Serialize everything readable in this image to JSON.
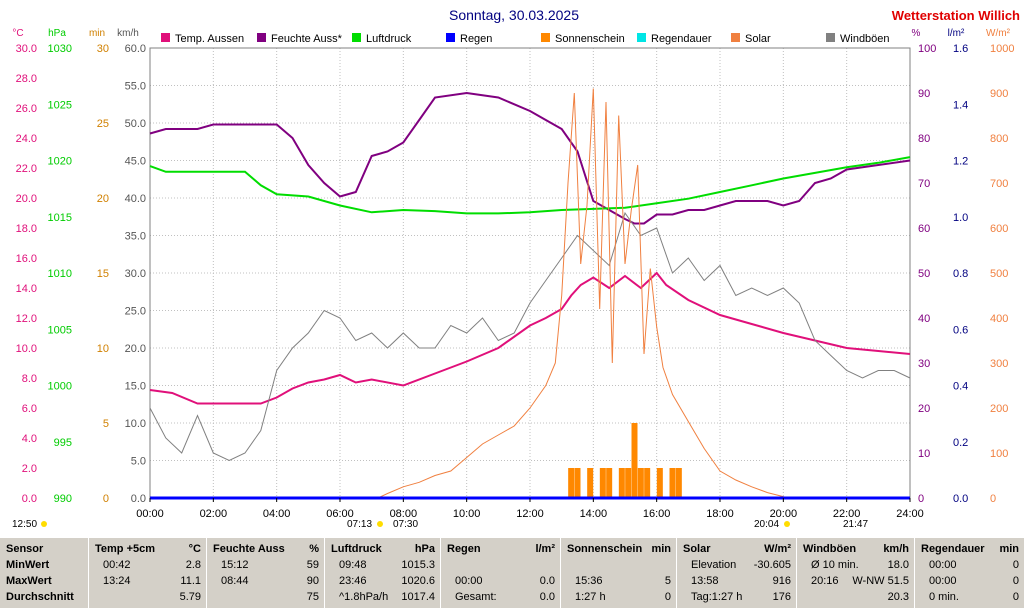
{
  "header": {
    "title": "Sonntag, 30.03.2025",
    "station": "Wetterstation Willich",
    "unit_left": [
      "°C",
      "hPa",
      "min",
      "km/h"
    ],
    "unit_right": [
      "%",
      "l/m²",
      "W/m²"
    ]
  },
  "legend": [
    {
      "label": "Temp. Aussen",
      "color": "#e0107a"
    },
    {
      "label": "Feuchte Auss*",
      "color": "#800080"
    },
    {
      "label": "Luftdruck",
      "color": "#00dd00"
    },
    {
      "label": "Regen",
      "color": "#0000ff"
    },
    {
      "label": "Sonnenschein",
      "color": "#ff8800"
    },
    {
      "label": "Regendauer",
      "color": "#00e5e5"
    },
    {
      "label": "Solar",
      "color": "#f08040"
    },
    {
      "label": "Windböen",
      "color": "#808080"
    }
  ],
  "axes": {
    "temp": {
      "ticks": [
        "30.0",
        "28.0",
        "26.0",
        "24.0",
        "22.0",
        "20.0",
        "18.0",
        "16.0",
        "14.0",
        "12.0",
        "10.0",
        "8.0",
        "6.0",
        "4.0",
        "2.0",
        "0.0"
      ],
      "color": "#e0107a"
    },
    "pressure": {
      "ticks": [
        "1030",
        "1025",
        "1020",
        "1015",
        "1010",
        "1005",
        "1000",
        "995",
        "990"
      ],
      "color": "#00cc00"
    },
    "minutes": {
      "ticks": [
        "30",
        "25",
        "20",
        "15",
        "10",
        "5",
        "0"
      ],
      "color": "#d08000"
    },
    "wind": {
      "ticks": [
        "60.0",
        "55.0",
        "50.0",
        "45.0",
        "40.0",
        "35.0",
        "30.0",
        "25.0",
        "20.0",
        "15.0",
        "10.0",
        "5.0",
        "0.0"
      ],
      "color": "#555555"
    },
    "humidity": {
      "ticks": [
        "100",
        "90",
        "80",
        "70",
        "60",
        "50",
        "40",
        "30",
        "20",
        "10",
        "0"
      ],
      "color": "#800080"
    },
    "rain": {
      "ticks": [
        "1.6",
        "1.4",
        "1.2",
        "1.0",
        "0.8",
        "0.6",
        "0.4",
        "0.2",
        "0.0"
      ],
      "color": "#000080"
    },
    "solar": {
      "ticks": [
        "1000",
        "900",
        "800",
        "700",
        "600",
        "500",
        "400",
        "300",
        "200",
        "100",
        "0"
      ],
      "color": "#f08040"
    },
    "x_ticks": [
      "00:00",
      "02:00",
      "04:00",
      "06:00",
      "08:00",
      "10:00",
      "12:00",
      "14:00",
      "16:00",
      "18:00",
      "20:00",
      "22:00",
      "24:00"
    ]
  },
  "markers": {
    "time_left": "12:50",
    "sunrise": "07:13",
    "sunrise2": "07:30",
    "sunset": "20:04",
    "sunset2": "21:47"
  },
  "chart_data": {
    "type": "line",
    "x_unit": "hour of day",
    "xlim": [
      0,
      24
    ],
    "series": [
      {
        "name": "Temp. Aussen",
        "axis": "temp",
        "ylim": [
          0,
          30
        ],
        "x": [
          0,
          0.7,
          1.5,
          2,
          3,
          3.5,
          4,
          4.5,
          5,
          5.5,
          6,
          6.5,
          7,
          8,
          9,
          10,
          11,
          12,
          12.5,
          13,
          13.3,
          13.6,
          14,
          14.5,
          15,
          15.5,
          16,
          16.3,
          17,
          18,
          19,
          20,
          21,
          22,
          23,
          24
        ],
        "y": [
          7.2,
          7.0,
          6.3,
          6.3,
          6.3,
          6.3,
          6.7,
          7.3,
          7.7,
          7.9,
          8.2,
          7.7,
          7.9,
          7.5,
          8.3,
          9.1,
          10.0,
          11.5,
          12.0,
          12.6,
          13.5,
          14.2,
          14.7,
          14.0,
          14.8,
          14.0,
          15.0,
          14.2,
          13.2,
          12.2,
          11.6,
          11.0,
          10.5,
          10.0,
          9.8,
          9.6
        ]
      },
      {
        "name": "Feuchte Auss*",
        "axis": "humidity",
        "ylim": [
          0,
          100
        ],
        "x": [
          0,
          0.5,
          1,
          1.5,
          2,
          2.5,
          3,
          3.5,
          4,
          4.5,
          5,
          5.5,
          6,
          6.5,
          7,
          7.5,
          8,
          8.5,
          9,
          10,
          11,
          12,
          12.5,
          13,
          13.5,
          14,
          14.5,
          15,
          15.3,
          15.6,
          16,
          16.5,
          17,
          17.5,
          18,
          18.5,
          19,
          19.5,
          20,
          20.5,
          21,
          21.5,
          22,
          23,
          24
        ],
        "y": [
          81,
          82,
          82,
          82,
          83,
          83,
          83,
          83,
          83,
          80,
          74,
          70,
          67,
          68,
          76,
          77,
          79,
          84,
          89,
          90,
          89,
          86,
          84,
          82,
          77,
          66,
          64,
          62,
          61,
          61,
          63,
          63,
          64,
          64,
          65,
          66,
          66,
          66,
          65,
          66,
          70,
          71,
          73,
          74,
          75
        ]
      },
      {
        "name": "Luftdruck",
        "axis": "pressure",
        "ylim": [
          990,
          1030
        ],
        "x": [
          0,
          0.5,
          1,
          2,
          3,
          3.5,
          4,
          5,
          6,
          7,
          8,
          9,
          10,
          11,
          12,
          13,
          14,
          15,
          16,
          17,
          18,
          19,
          20,
          21,
          22,
          23,
          24
        ],
        "y": [
          1019.5,
          1019,
          1019,
          1019,
          1019,
          1017.8,
          1017,
          1016.8,
          1016,
          1015.4,
          1015.6,
          1015.5,
          1015.3,
          1015.3,
          1015.4,
          1015.6,
          1015.7,
          1015.8,
          1016.2,
          1016.6,
          1017.2,
          1017.8,
          1018.4,
          1018.9,
          1019.4,
          1019.8,
          1020.3
        ]
      },
      {
        "name": "Windböen",
        "axis": "wind",
        "ylim": [
          0,
          60
        ],
        "x": [
          0,
          0.5,
          1,
          1.5,
          2,
          2.5,
          3,
          3.5,
          4,
          4.5,
          5,
          5.5,
          6,
          6.5,
          7,
          7.5,
          8,
          8.5,
          9,
          9.5,
          10,
          10.5,
          11,
          11.5,
          12,
          12.5,
          13,
          13.5,
          14,
          14.5,
          15,
          15.5,
          16,
          16.5,
          17,
          17.5,
          18,
          18.5,
          19,
          19.5,
          20,
          20.5,
          21,
          21.5,
          22,
          22.5,
          23,
          23.5,
          24
        ],
        "y": [
          12,
          8,
          6,
          11,
          6,
          5,
          6,
          9,
          17,
          20,
          22,
          25,
          24,
          21,
          22,
          20,
          22,
          20,
          20,
          23,
          22,
          24,
          21,
          22,
          26,
          29,
          32,
          35,
          33,
          31,
          38,
          35,
          36,
          30,
          32,
          29,
          31,
          27,
          28,
          27,
          28,
          26,
          21,
          19,
          17,
          16,
          17,
          17,
          16
        ]
      },
      {
        "name": "Solar",
        "axis": "solar",
        "ylim": [
          0,
          1000
        ],
        "x": [
          0,
          7.2,
          7.5,
          8,
          8.5,
          9,
          9.5,
          10,
          10.5,
          11,
          11.5,
          12,
          12.5,
          12.8,
          13,
          13.2,
          13.4,
          13.6,
          13.8,
          14,
          14.2,
          14.4,
          14.6,
          14.8,
          15,
          15.2,
          15.4,
          15.6,
          15.8,
          16,
          16.2,
          16.5,
          17,
          17.5,
          18,
          18.5,
          19,
          19.5,
          20,
          20.1,
          24
        ],
        "y": [
          0,
          0,
          10,
          25,
          35,
          50,
          60,
          90,
          120,
          140,
          160,
          200,
          250,
          300,
          450,
          700,
          900,
          520,
          650,
          910,
          420,
          880,
          300,
          850,
          520,
          640,
          740,
          320,
          510,
          380,
          290,
          230,
          170,
          110,
          60,
          40,
          25,
          12,
          3,
          0,
          0
        ]
      },
      {
        "name": "Sonnenschein",
        "axis": "minutes",
        "ylim": [
          0,
          30
        ],
        "x": [
          13.3,
          13.5,
          13.7,
          13.9,
          14.1,
          14.3,
          14.5,
          14.7,
          14.9,
          15.1,
          15.3,
          15.5,
          15.7,
          16.1,
          16.3,
          16.5,
          16.7
        ],
        "y": [
          2,
          2,
          0,
          2,
          0,
          2,
          2,
          0,
          2,
          2,
          5,
          2,
          2,
          2,
          0,
          2,
          2
        ]
      },
      {
        "name": "Regen",
        "axis": "rain",
        "ylim": [
          0,
          1.6
        ],
        "x": [
          0,
          24
        ],
        "y": [
          0,
          0
        ]
      }
    ]
  },
  "stats": {
    "columns": [
      {
        "title": "Sensor",
        "unit": "",
        "rows": [
          [
            "MinWert",
            ""
          ],
          [
            "MaxWert",
            ""
          ],
          [
            "Durchschnitt",
            ""
          ]
        ]
      },
      {
        "title": "Temp +5cm",
        "unit": "°C",
        "rows": [
          [
            "00:42",
            "2.8"
          ],
          [
            "13:24",
            "11.1"
          ],
          [
            "",
            "5.79"
          ]
        ]
      },
      {
        "title": "Feuchte Auss",
        "unit": "%",
        "rows": [
          [
            "15:12",
            "59"
          ],
          [
            "08:44",
            "90"
          ],
          [
            "",
            "75"
          ]
        ]
      },
      {
        "title": "Luftdruck",
        "unit": "hPa",
        "rows": [
          [
            "09:48",
            "1015.3"
          ],
          [
            "23:46",
            "1020.6"
          ],
          [
            "^1.8hPa/h",
            "1017.4"
          ]
        ]
      },
      {
        "title": "Regen",
        "unit": "l/m²",
        "rows": [
          [
            "",
            ""
          ],
          [
            "00:00",
            "0.0"
          ],
          [
            "Gesamt:",
            "0.0"
          ]
        ]
      },
      {
        "title": "Sonnenschein",
        "unit": "min",
        "rows": [
          [
            "",
            ""
          ],
          [
            "15:36",
            "5"
          ],
          [
            "1:27 h",
            "0"
          ]
        ]
      },
      {
        "title": "Solar",
        "unit": "W/m²",
        "rows": [
          [
            "Elevation",
            "-30.605"
          ],
          [
            "13:58",
            "916"
          ],
          [
            "Tag:1:27 h",
            "176"
          ]
        ]
      },
      {
        "title": "Windböen",
        "unit": "km/h",
        "rows": [
          [
            "Ø 10 min.",
            "18.0"
          ],
          [
            "20:16",
            "W-NW 51.5"
          ],
          [
            "",
            "20.3"
          ]
        ]
      },
      {
        "title": "Regendauer",
        "unit": "min",
        "rows": [
          [
            "00:00",
            "0"
          ],
          [
            "00:00",
            "0"
          ],
          [
            "0 min.",
            "0"
          ]
        ]
      }
    ]
  }
}
